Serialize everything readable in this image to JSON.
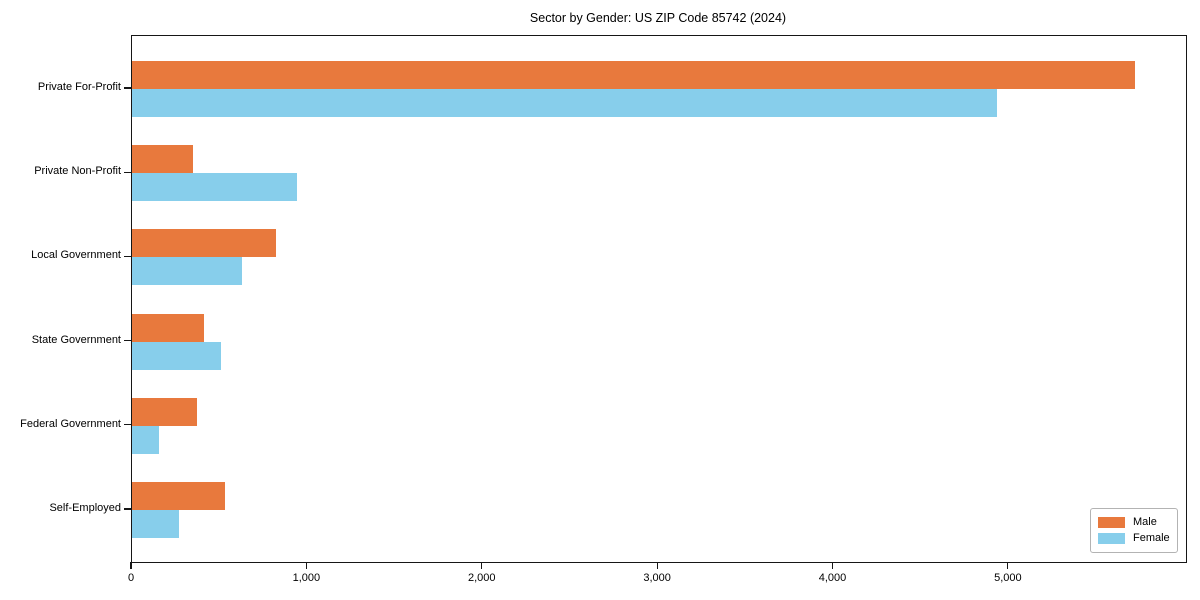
{
  "chart_data": {
    "type": "bar",
    "orientation": "horizontal",
    "title": "Sector by Gender: US ZIP Code 85742 (2024)",
    "xlabel": "",
    "ylabel": "",
    "categories": [
      "Private For-Profit",
      "Private Non-Profit",
      "Local Government",
      "State Government",
      "Federal Government",
      "Self-Employed"
    ],
    "series": [
      {
        "name": "Male",
        "color": "#e8793d",
        "values": [
          5720,
          345,
          820,
          410,
          370,
          530
        ]
      },
      {
        "name": "Female",
        "color": "#87ceeb",
        "values": [
          4930,
          940,
          625,
          510,
          155,
          270
        ]
      }
    ],
    "xlim": [
      0,
      6010
    ],
    "x_ticks": [
      {
        "value": 0,
        "label": "0"
      },
      {
        "value": 1000,
        "label": "1,000"
      },
      {
        "value": 2000,
        "label": "2,000"
      },
      {
        "value": 3000,
        "label": "3,000"
      },
      {
        "value": 4000,
        "label": "4,000"
      },
      {
        "value": 5000,
        "label": "5,000"
      }
    ],
    "grid": false,
    "legend_position": "lower right",
    "background_color": "#ffffff",
    "spine_color": "#161616"
  }
}
